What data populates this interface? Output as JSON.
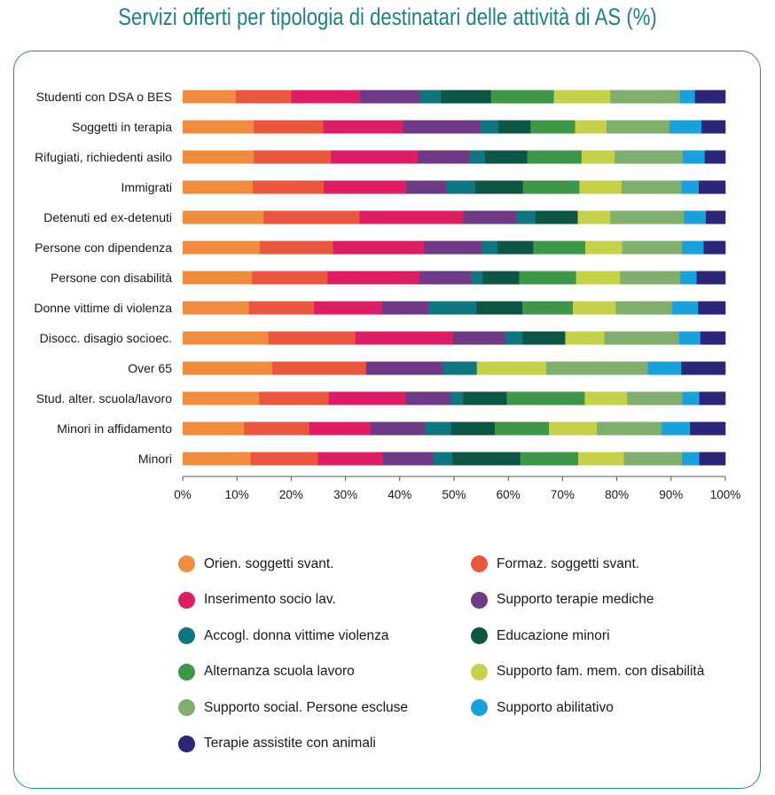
{
  "title": "Servizi offerti per tipologia di destinatari delle attività di AS (%)",
  "chart_data": {
    "type": "bar",
    "orientation": "horizontal",
    "stacked": "percent",
    "title": "Servizi offerti per tipologia di destinatari delle attività di AS (%)",
    "xlim": [
      0,
      100
    ],
    "xticks": [
      "0%",
      "10%",
      "20%",
      "30%",
      "40%",
      "50%",
      "60%",
      "70%",
      "80%",
      "90%",
      "100%"
    ],
    "grid": false,
    "legend_position": "bottom",
    "categories": [
      "Studenti con DSA o BES",
      "Soggetti in terapia",
      "Rifugiati, richiedenti asilo",
      "Immigrati",
      "Detenuti ed ex-detenuti",
      "Persone con dipendenza",
      "Persone con disabilità",
      "Donne vittime di violenza",
      "Disocc. disagio socioec.",
      "Over 65",
      "Stud. alter. scuola/lavoro",
      "Minori in affidamento",
      "Minori"
    ],
    "series": [
      {
        "name": "Orien. soggetti svant.",
        "color": "#f08c3f",
        "values": [
          9.8,
          13.1,
          13.1,
          12.9,
          14.9,
          14.2,
          12.8,
          12.2,
          15.8,
          16.5,
          14.1,
          11.3,
          12.5
        ]
      },
      {
        "name": "Formaz. soggetti svant.",
        "color": "#e8573e",
        "values": [
          10.2,
          12.8,
          14.2,
          13.1,
          17.7,
          13.5,
          13.9,
          12.0,
          16.0,
          17.3,
          12.8,
          12.0,
          12.4
        ]
      },
      {
        "name": "Inserimento socio lav.",
        "color": "#dc1e64",
        "values": [
          12.7,
          14.7,
          16.0,
          15.2,
          19.1,
          16.8,
          16.9,
          12.5,
          18.0,
          0,
          14.2,
          11.3,
          12.0
        ]
      },
      {
        "name": "Supporto terapie mediche",
        "color": "#6e3a85",
        "values": [
          11.0,
          14.2,
          9.5,
          7.4,
          9.8,
          10.6,
          9.6,
          8.6,
          9.6,
          14.2,
          8.3,
          10.0,
          9.3
        ]
      },
      {
        "name": "Accogl. donna vittime violenza",
        "color": "#0f7680",
        "values": [
          3.9,
          3.4,
          2.9,
          5.3,
          3.5,
          2.9,
          2.1,
          8.8,
          3.2,
          6.2,
          2.3,
          4.9,
          3.5
        ]
      },
      {
        "name": "Educazione minori",
        "color": "#0e5545",
        "values": [
          9.2,
          5.9,
          7.8,
          8.8,
          7.8,
          6.6,
          6.7,
          8.5,
          7.9,
          0,
          8.0,
          8.0,
          12.5
        ]
      },
      {
        "name": "Alternanza scuola lavoro",
        "color": "#3e9648",
        "values": [
          11.6,
          8.2,
          10.0,
          10.4,
          0,
          9.6,
          10.5,
          9.3,
          0,
          0,
          14.4,
          10.0,
          10.7
        ]
      },
      {
        "name": "Supporto fam. mem. con disabilità",
        "color": "#c5d14a",
        "values": [
          10.4,
          5.8,
          6.1,
          7.8,
          6.0,
          6.8,
          8.1,
          7.9,
          7.2,
          12.8,
          7.8,
          8.8,
          8.4
        ]
      },
      {
        "name": "Supporto social. Persone escluse",
        "color": "#7fae6e",
        "values": [
          12.8,
          11.6,
          12.6,
          11.0,
          13.6,
          11.0,
          11.1,
          10.4,
          13.8,
          18.7,
          10.2,
          12.0,
          10.7
        ]
      },
      {
        "name": "Supporto abilitativo",
        "color": "#1aa1dc",
        "values": [
          2.8,
          5.9,
          4.0,
          3.2,
          4.0,
          4.0,
          3.0,
          4.8,
          3.9,
          6.2,
          3.1,
          5.2,
          3.2
        ]
      },
      {
        "name": "Terapie assistite con animali",
        "color": "#2b2677",
        "values": [
          5.6,
          4.4,
          3.8,
          4.9,
          3.6,
          4.0,
          5.3,
          5.0,
          4.6,
          8.1,
          4.8,
          6.5,
          4.8
        ]
      }
    ]
  }
}
